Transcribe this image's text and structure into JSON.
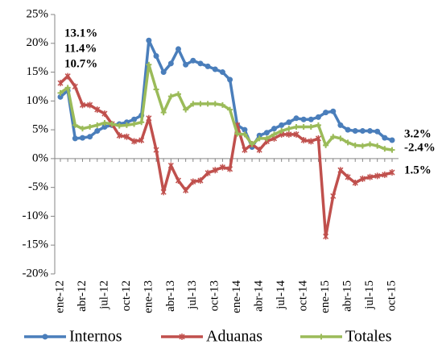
{
  "chart_data": {
    "type": "line",
    "categories": [
      "ene-12",
      null,
      null,
      "abr-12",
      null,
      null,
      "jul-12",
      null,
      null,
      "oct-12",
      null,
      null,
      "ene-13",
      null,
      null,
      "abr-13",
      null,
      null,
      "jul-13",
      null,
      null,
      "oct-13",
      null,
      null,
      "ene-14",
      null,
      null,
      "abr-14",
      null,
      null,
      "jul-14",
      null,
      null,
      "oct-14",
      null,
      null,
      "ene-15",
      null,
      null,
      "abr-15",
      null,
      null,
      "jul-15",
      null,
      null,
      "oct-15"
    ],
    "series": [
      {
        "name": "Internos",
        "color": "#4a7ebb",
        "marker": "circle",
        "values": [
          10.7,
          11.8,
          3.5,
          3.6,
          3.8,
          4.8,
          5.5,
          5.8,
          6.0,
          6.3,
          6.8,
          7.5,
          20.5,
          17.8,
          15.0,
          16.5,
          19.0,
          16.3,
          17.0,
          16.5,
          16.0,
          15.5,
          15.0,
          13.7,
          5.8,
          5.0,
          2.0,
          4.0,
          4.5,
          5.2,
          5.8,
          6.3,
          7.0,
          6.8,
          6.8,
          7.2,
          8.0,
          8.2,
          5.8,
          5.0,
          4.8,
          4.8,
          4.8,
          4.7,
          3.6,
          3.2
        ],
        "value_labels": [
          "10.7%",
          null,
          null,
          null,
          null,
          null,
          null,
          null,
          null,
          null,
          null,
          null,
          null,
          null,
          null,
          null,
          null,
          null,
          null,
          null,
          null,
          null,
          null,
          null,
          null,
          null,
          null,
          null,
          null,
          null,
          null,
          null,
          null,
          null,
          null,
          null,
          null,
          null,
          null,
          null,
          null,
          null,
          null,
          null,
          null,
          "3.2%"
        ]
      },
      {
        "name": "Aduanas",
        "color": "#c0504d",
        "marker": "x",
        "values": [
          13.1,
          14.3,
          12.5,
          9.3,
          9.3,
          8.5,
          7.8,
          6.0,
          4.0,
          3.8,
          3.0,
          3.2,
          7.0,
          1.5,
          -5.8,
          -1.2,
          -3.8,
          -5.5,
          -4.0,
          -3.8,
          -2.5,
          -2.0,
          -1.5,
          -1.8,
          5.8,
          1.5,
          2.5,
          1.5,
          3.0,
          3.5,
          4.2,
          4.2,
          4.2,
          3.2,
          3.0,
          3.5,
          -13.5,
          -6.5,
          -2.0,
          -3.2,
          -4.2,
          -3.5,
          -3.2,
          -3.0,
          -2.8,
          -2.4
        ],
        "value_labels": [
          "13.1%",
          null,
          null,
          null,
          null,
          null,
          null,
          null,
          null,
          null,
          null,
          null,
          null,
          null,
          null,
          null,
          null,
          null,
          null,
          null,
          null,
          null,
          null,
          null,
          null,
          null,
          null,
          null,
          null,
          null,
          null,
          null,
          null,
          null,
          null,
          null,
          null,
          null,
          null,
          null,
          null,
          null,
          null,
          null,
          null,
          "-2.4%"
        ]
      },
      {
        "name": "Totales",
        "color": "#9bbb59",
        "marker": "plus",
        "values": [
          11.4,
          12.3,
          5.8,
          5.2,
          5.5,
          5.8,
          6.2,
          6.0,
          5.7,
          5.8,
          6.0,
          6.3,
          16.3,
          12.0,
          8.0,
          10.8,
          11.2,
          8.5,
          9.5,
          9.5,
          9.5,
          9.5,
          9.3,
          8.5,
          4.3,
          4.2,
          2.5,
          3.5,
          3.5,
          4.2,
          4.8,
          5.2,
          5.5,
          5.5,
          5.5,
          5.8,
          2.3,
          3.8,
          3.5,
          2.8,
          2.3,
          2.2,
          2.5,
          2.2,
          1.7,
          1.5
        ],
        "value_labels": [
          "11.4%",
          null,
          null,
          null,
          null,
          null,
          null,
          null,
          null,
          null,
          null,
          null,
          null,
          null,
          null,
          null,
          null,
          null,
          null,
          null,
          null,
          null,
          null,
          null,
          null,
          null,
          null,
          null,
          null,
          null,
          null,
          null,
          null,
          null,
          null,
          null,
          null,
          null,
          null,
          null,
          null,
          null,
          null,
          null,
          null,
          "1.5%"
        ]
      }
    ],
    "ylim": [
      -20,
      25
    ],
    "yticks": [
      {
        "value": -20,
        "label": "-20%"
      },
      {
        "value": -15,
        "label": "-15%"
      },
      {
        "value": -10,
        "label": "-10%"
      },
      {
        "value": -5,
        "label": "-5%"
      },
      {
        "value": 0,
        "label": "0%"
      },
      {
        "value": 5,
        "label": "5%"
      },
      {
        "value": 10,
        "label": "10%"
      },
      {
        "value": 15,
        "label": "15%"
      },
      {
        "value": 20,
        "label": "20%"
      },
      {
        "value": 25,
        "label": "25%"
      }
    ],
    "grid": false,
    "legend": "bottom"
  }
}
